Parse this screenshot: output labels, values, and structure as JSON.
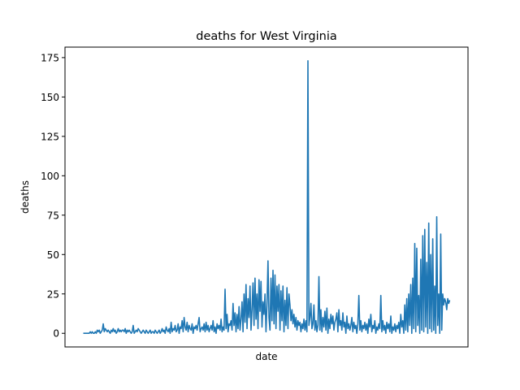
{
  "chart_data": {
    "type": "line",
    "title": "deaths for West Virginia",
    "xlabel": "date",
    "ylabel": "deaths",
    "ylim": [
      -8.65,
      181.65
    ],
    "yticks": [
      0,
      25,
      50,
      75,
      100,
      125,
      150,
      175
    ],
    "grid": false,
    "legend": "none",
    "x_tick_labels": [],
    "series": [
      {
        "color": "#1f77b4",
        "values": [
          0,
          0,
          0,
          0,
          0,
          0,
          0,
          1,
          0,
          1,
          0,
          0,
          1,
          0,
          2,
          1,
          2,
          0,
          1,
          2,
          6,
          1,
          3,
          2,
          1,
          2,
          1,
          0,
          2,
          1,
          3,
          1,
          2,
          0,
          1,
          3,
          1,
          2,
          1,
          2,
          2,
          1,
          3,
          0,
          2,
          1,
          2,
          1,
          0,
          1,
          5,
          0,
          1,
          2,
          1,
          3,
          2,
          1,
          0,
          1,
          2,
          1,
          0,
          2,
          1,
          0,
          1,
          2,
          0,
          1,
          1,
          0,
          2,
          1,
          0,
          1,
          2,
          0,
          1,
          3,
          1,
          2,
          0,
          4,
          2,
          1,
          3,
          0,
          7,
          1,
          3,
          2,
          5,
          1,
          2,
          6,
          0,
          4,
          3,
          8,
          1,
          10,
          4,
          2,
          7,
          1,
          5,
          3,
          2,
          6,
          0,
          4,
          3,
          5,
          2,
          6,
          10,
          1,
          3,
          4,
          2,
          6,
          1,
          7,
          2,
          5,
          1,
          3,
          5,
          2,
          8,
          1,
          4,
          0,
          6,
          3,
          5,
          2,
          9,
          1,
          4,
          2,
          28,
          3,
          12,
          1,
          6,
          5,
          8,
          2,
          19,
          5,
          13,
          1,
          12,
          3,
          17,
          2,
          9,
          20,
          1,
          25,
          7,
          31,
          3,
          22,
          10,
          30,
          2,
          15,
          32,
          5,
          35,
          9,
          25,
          3,
          34,
          14,
          33,
          4,
          20,
          12,
          25,
          1,
          18,
          46,
          10,
          2,
          35,
          8,
          40,
          6,
          37,
          3,
          30,
          14,
          31,
          2,
          27,
          8,
          30,
          1,
          21,
          5,
          29,
          3,
          25,
          18,
          8,
          15,
          6,
          12,
          4,
          10,
          2,
          8,
          5,
          7,
          1,
          6,
          3,
          9,
          2,
          8,
          1,
          173,
          5,
          10,
          19,
          3,
          6,
          18,
          2,
          8,
          1,
          5,
          36,
          2,
          15,
          1,
          10,
          4,
          14,
          2,
          16,
          0,
          9,
          3,
          12,
          6,
          11,
          2,
          7,
          9,
          13,
          1,
          15,
          5,
          8,
          2,
          13,
          4,
          7,
          0,
          11,
          3,
          6,
          2,
          5,
          10,
          1,
          7,
          3,
          5,
          0,
          6,
          24,
          2,
          8,
          1,
          5,
          3,
          7,
          2,
          6,
          0,
          9,
          4,
          12,
          1,
          5,
          3,
          8,
          0,
          4,
          2,
          6,
          3,
          24,
          1,
          8,
          2,
          5,
          0,
          7,
          3,
          6,
          1,
          11,
          0,
          4,
          2,
          6,
          1,
          5,
          3,
          7,
          0,
          12,
          4,
          8,
          0,
          18,
          2,
          22,
          1,
          25,
          5,
          31,
          0,
          35,
          3,
          57,
          1,
          54,
          5,
          24,
          0,
          47,
          2,
          62,
          1,
          66,
          4,
          45,
          0,
          70,
          3,
          50,
          1,
          60,
          2,
          30,
          0,
          74,
          5,
          25,
          0,
          63,
          2,
          25,
          18,
          22,
          20,
          15,
          22,
          19,
          21
        ]
      }
    ]
  }
}
